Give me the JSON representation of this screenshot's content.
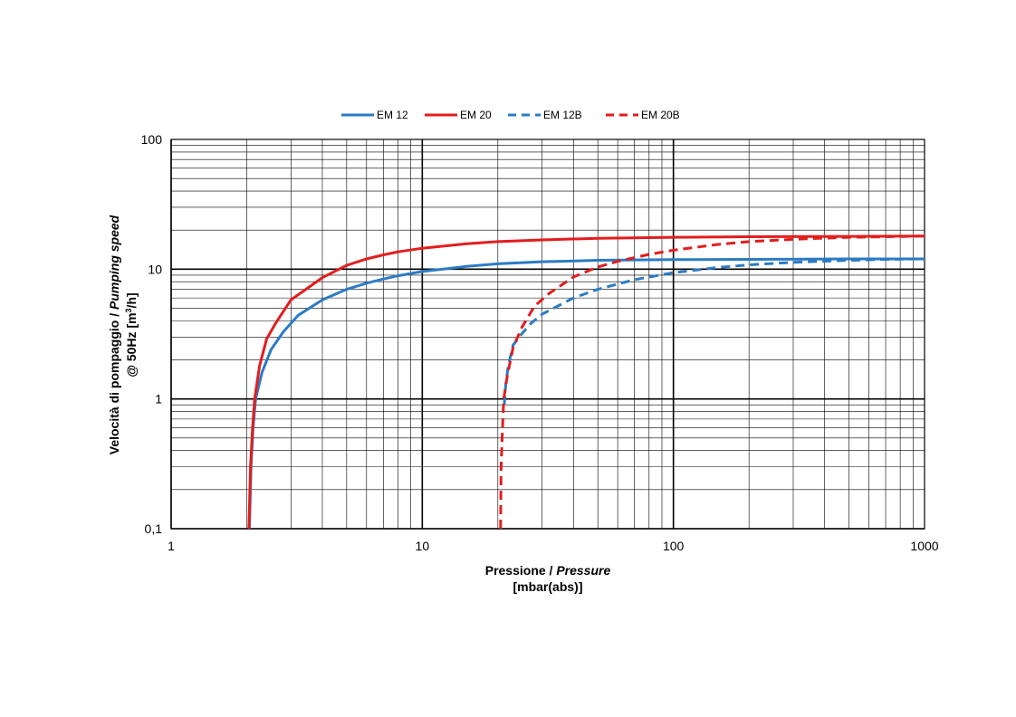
{
  "chart_data": {
    "type": "line",
    "x_scale": "log",
    "y_scale": "log",
    "xlim": [
      1,
      1000
    ],
    "ylim": [
      0.1,
      100
    ],
    "xlabel": {
      "main": "Pressione / ",
      "italic": "Pressure",
      "line2": "[mbar(abs)]"
    },
    "ylabel": {
      "main": "Velocità di pompaggio / ",
      "italic": "Pumping speed",
      "line2_pre": "@ 50Hz [m",
      "line2_sup": "3",
      "line2_post": "/h]"
    },
    "x_ticks": [
      {
        "value": 1,
        "label": "1"
      },
      {
        "value": 10,
        "label": "10"
      },
      {
        "value": 100,
        "label": "100"
      },
      {
        "value": 1000,
        "label": "1000"
      }
    ],
    "y_ticks": [
      {
        "value": 0.1,
        "label": "0,1"
      },
      {
        "value": 1,
        "label": "1"
      },
      {
        "value": 10,
        "label": "10"
      },
      {
        "value": 100,
        "label": "100"
      }
    ],
    "grid": true,
    "legend_position": "top",
    "series": [
      {
        "name": "EM 12",
        "color": "#2B7BC4",
        "dash": "solid",
        "points": [
          [
            2.05,
            0.1
          ],
          [
            2.08,
            0.3
          ],
          [
            2.12,
            0.6
          ],
          [
            2.17,
            1.0
          ],
          [
            2.3,
            1.6
          ],
          [
            2.5,
            2.4
          ],
          [
            2.8,
            3.3
          ],
          [
            3.2,
            4.4
          ],
          [
            4,
            5.8
          ],
          [
            5,
            7.0
          ],
          [
            6,
            7.8
          ],
          [
            7,
            8.4
          ],
          [
            8,
            8.9
          ],
          [
            10,
            9.6
          ],
          [
            15,
            10.5
          ],
          [
            20,
            11.0
          ],
          [
            30,
            11.4
          ],
          [
            50,
            11.7
          ],
          [
            100,
            11.85
          ],
          [
            200,
            11.9
          ],
          [
            500,
            12.0
          ],
          [
            1000,
            12.0
          ]
        ]
      },
      {
        "name": "EM 20",
        "color": "#E31D1D",
        "dash": "solid",
        "points": [
          [
            2.04,
            0.1
          ],
          [
            2.07,
            0.3
          ],
          [
            2.11,
            0.6
          ],
          [
            2.15,
            1.0
          ],
          [
            2.25,
            1.8
          ],
          [
            2.4,
            2.9
          ],
          [
            2.6,
            3.8
          ],
          [
            3,
            5.8
          ],
          [
            4,
            8.6
          ],
          [
            5,
            10.7
          ],
          [
            6,
            12.0
          ],
          [
            7,
            12.9
          ],
          [
            8,
            13.6
          ],
          [
            10,
            14.5
          ],
          [
            15,
            15.7
          ],
          [
            20,
            16.3
          ],
          [
            30,
            16.8
          ],
          [
            50,
            17.3
          ],
          [
            100,
            17.6
          ],
          [
            200,
            17.8
          ],
          [
            500,
            17.9
          ],
          [
            1000,
            18.0
          ]
        ]
      },
      {
        "name": "EM 12B",
        "color": "#2B7BC4",
        "dash": "dashed",
        "points": [
          [
            21.2,
            0.9
          ],
          [
            21.5,
            1.3
          ],
          [
            22,
            1.8
          ],
          [
            23,
            2.6
          ],
          [
            25,
            3.2
          ],
          [
            27,
            3.8
          ],
          [
            30,
            4.5
          ],
          [
            40,
            6.0
          ],
          [
            50,
            7.0
          ],
          [
            70,
            8.3
          ],
          [
            100,
            9.4
          ],
          [
            150,
            10.3
          ],
          [
            200,
            10.8
          ],
          [
            300,
            11.3
          ],
          [
            500,
            11.7
          ],
          [
            700,
            11.9
          ],
          [
            1000,
            12.0
          ]
        ]
      },
      {
        "name": "EM 20B",
        "color": "#E31D1D",
        "dash": "dashed",
        "points": [
          [
            20.5,
            0.1
          ],
          [
            20.6,
            0.3
          ],
          [
            20.8,
            0.5
          ],
          [
            21.1,
            1.0
          ],
          [
            21.8,
            1.5
          ],
          [
            23,
            2.5
          ],
          [
            25,
            3.6
          ],
          [
            28,
            5.2
          ],
          [
            32,
            6.5
          ],
          [
            40,
            8.7
          ],
          [
            50,
            10.4
          ],
          [
            60,
            11.5
          ],
          [
            80,
            13.0
          ],
          [
            100,
            14.0
          ],
          [
            150,
            15.5
          ],
          [
            200,
            16.3
          ],
          [
            300,
            17.0
          ],
          [
            500,
            17.6
          ],
          [
            1000,
            18.0
          ]
        ]
      }
    ]
  }
}
